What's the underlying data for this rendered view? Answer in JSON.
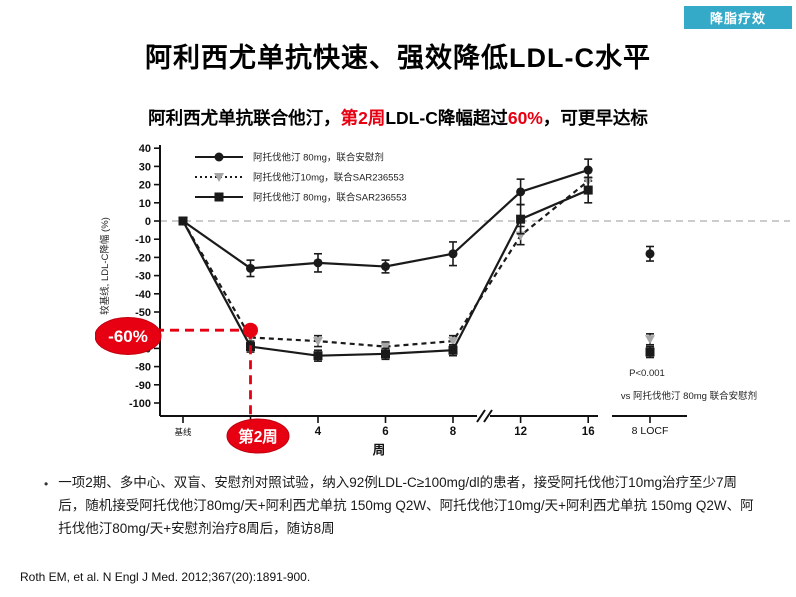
{
  "badge": {
    "label": "降脂疗效",
    "bg_color": "#35a9c8",
    "text_color": "#ffffff"
  },
  "title": "阿利西尤单抗快速、强效降低LDL-C水平",
  "subtitle": {
    "part1": "阿利西尤单抗联合他汀，",
    "highlight1": "第2周",
    "part2": "LDL-C降幅超过",
    "highlight2": "60%",
    "part3": "，可更早达标",
    "highlight_color": "#e60012"
  },
  "chart_data": {
    "type": "line",
    "xlabel": "周",
    "ylabel": "较基线, LDL-C降幅 (%)",
    "ylim": [
      -100,
      40
    ],
    "yticks": [
      40,
      30,
      20,
      10,
      0,
      -10,
      -20,
      -30,
      -40,
      -50,
      -60,
      -70,
      -80,
      -90,
      -100
    ],
    "x_weeks": [
      0,
      2,
      4,
      6,
      8,
      12,
      16
    ],
    "xtick_labels": [
      "基线",
      "",
      "4",
      "6",
      "8",
      "12",
      "16"
    ],
    "axis_break_after_week": 8,
    "locf_label": "8 LOCF",
    "zero_line": true,
    "grid": false,
    "legend_position": "top-left-inside",
    "colors": {
      "line": "#1a1a1a",
      "gray_marker": "#a6a6a6",
      "zero_line": "#bcbcbc",
      "highlight": "#e60012"
    },
    "series": [
      {
        "name": "阿托伐他汀 80mg，联合安慰剂",
        "marker": "circle",
        "line_style": "solid",
        "values": [
          0,
          -26,
          -23,
          -25,
          -18,
          16,
          28
        ],
        "errors": [
          1.5,
          4.5,
          5,
          3.5,
          6.5,
          7,
          6
        ],
        "locf_value": -18,
        "locf_error": 4
      },
      {
        "name": "阿托伐他汀10mg，联合SAR236553",
        "marker": "triangle-down",
        "line_style": "dashed",
        "values": [
          0,
          -64,
          -66,
          -69,
          -66,
          -8,
          22
        ],
        "errors": [
          1.5,
          3,
          3,
          2.5,
          3,
          5,
          6.5
        ],
        "locf_value": -65,
        "locf_error": 3
      },
      {
        "name": "阿托伐他汀 80mg，联合SAR236553",
        "marker": "square",
        "line_style": "solid",
        "values": [
          0,
          -69,
          -74,
          -73,
          -71,
          1,
          17
        ],
        "errors": [
          1.5,
          3,
          3,
          3,
          3,
          8,
          7
        ],
        "locf_value": -72,
        "locf_error": 3
      }
    ],
    "annotations": {
      "pvalue": "P<0.001",
      "pvalue_vs": "vs 阿托伐他汀 80mg 联合安慰剂",
      "highlight_value_label": "-60%",
      "highlight_week_label": "第2周",
      "highlight_week": 2,
      "highlight_y": -60
    }
  },
  "study_note": {
    "bullet": "•",
    "text": "一项2期、多中心、双盲、安慰剂对照试验，纳入92例LDL-C≥100mg/dl的患者，接受阿托伐他汀10mg治疗至少7周后，随机接受阿托伐他汀80mg/天+阿利西尤单抗 150mg Q2W、阿托伐他汀10mg/天+阿利西尤单抗 150mg Q2W、阿托伐他汀80mg/天+安慰剂治疗8周后，随访8周"
  },
  "footer": {
    "citation": "Roth EM, et al. N Engl J Med. 2012;367(20):1891-900."
  }
}
